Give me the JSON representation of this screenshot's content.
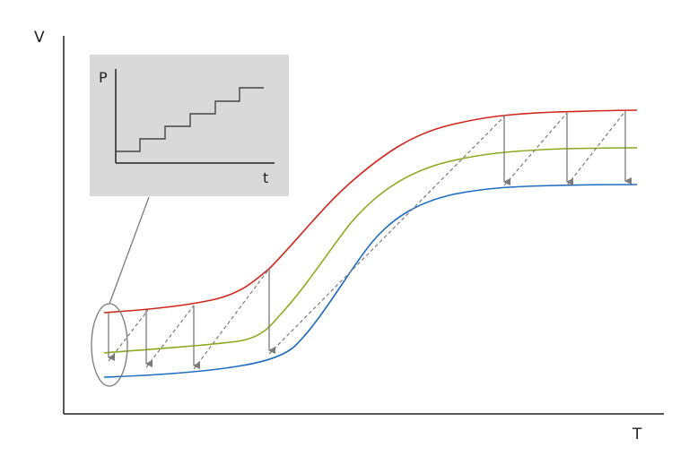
{
  "axes": {
    "y_label": "V",
    "x_label": "T"
  },
  "inset": {
    "y_label": "P",
    "x_label": "t",
    "background": "#d9d9d9"
  },
  "colors": {
    "upper_curve": "#d0281c",
    "middle_curve": "#8aab1e",
    "lower_curve": "#1f6cc0",
    "arrow": "#7a7a7a",
    "axis": "#222222"
  }
}
